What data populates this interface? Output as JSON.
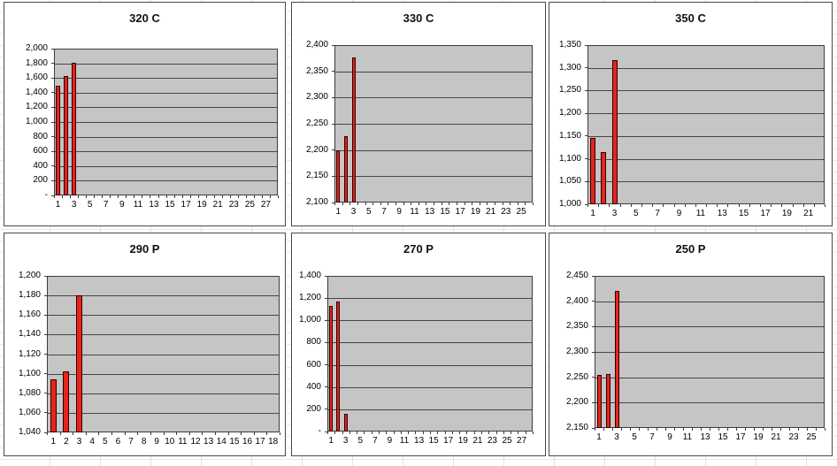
{
  "style": {
    "bar_fill": "#e8231c",
    "bar_border": "#2a0000",
    "plot_bg": "#c5c5c5",
    "plot_border": "#3c3c3c",
    "gridline_color": "#464646",
    "text_color": "#000000"
  },
  "charts": [
    {
      "title": "320 C",
      "chart_data": {
        "type": "bar",
        "x": [
          1,
          2,
          3
        ],
        "values": [
          1500,
          1630,
          1810
        ],
        "n_categories": 28,
        "xticks": [
          1,
          3,
          5,
          7,
          9,
          11,
          13,
          15,
          17,
          19,
          21,
          23,
          25,
          27
        ],
        "ylim": [
          0,
          2000
        ],
        "ytick_step": 200,
        "zero_label": "-",
        "grid": true,
        "legend": "none"
      }
    },
    {
      "title": "330 C",
      "chart_data": {
        "type": "bar",
        "x": [
          1,
          2,
          3
        ],
        "values": [
          2200,
          2227,
          2377
        ],
        "n_categories": 26,
        "xticks": [
          1,
          3,
          5,
          7,
          9,
          11,
          13,
          15,
          17,
          19,
          21,
          23,
          25
        ],
        "ylim": [
          2100,
          2400
        ],
        "ytick_step": 50,
        "zero_label": "",
        "grid": true,
        "legend": "none"
      }
    },
    {
      "title": "350 C",
      "chart_data": {
        "type": "bar",
        "x": [
          1,
          2,
          3
        ],
        "values": [
          1145,
          1115,
          1318
        ],
        "n_categories": 22,
        "xticks": [
          1,
          3,
          5,
          7,
          9,
          11,
          13,
          15,
          17,
          19,
          21
        ],
        "ylim": [
          1000,
          1350
        ],
        "ytick_step": 50,
        "zero_label": "",
        "grid": true,
        "legend": "none"
      }
    },
    {
      "title": "290 P",
      "chart_data": {
        "type": "bar",
        "x": [
          1,
          2,
          3
        ],
        "values": [
          1094,
          1102,
          1180
        ],
        "n_categories": 18,
        "xticks": [
          1,
          2,
          3,
          4,
          5,
          6,
          7,
          8,
          9,
          10,
          11,
          12,
          13,
          14,
          15,
          16,
          17,
          18
        ],
        "ylim": [
          1040,
          1200
        ],
        "ytick_step": 20,
        "zero_label": "",
        "grid": true,
        "legend": "none"
      }
    },
    {
      "title": "270 P",
      "chart_data": {
        "type": "bar",
        "x": [
          1,
          2,
          3
        ],
        "values": [
          1127,
          1173,
          160
        ],
        "n_categories": 28,
        "xticks": [
          1,
          3,
          5,
          7,
          9,
          11,
          13,
          15,
          17,
          19,
          21,
          23,
          25,
          27
        ],
        "ylim": [
          0,
          1400
        ],
        "ytick_step": 200,
        "zero_label": "-",
        "grid": true,
        "legend": "none"
      }
    },
    {
      "title": "250 P",
      "chart_data": {
        "type": "bar",
        "x": [
          1,
          2,
          3
        ],
        "values": [
          2255,
          2257,
          2420
        ],
        "n_categories": 26,
        "xticks": [
          1,
          3,
          5,
          7,
          9,
          11,
          13,
          15,
          17,
          19,
          21,
          23,
          25
        ],
        "ylim": [
          2150,
          2450
        ],
        "ytick_step": 50,
        "zero_label": "",
        "grid": true,
        "legend": "none"
      }
    }
  ]
}
